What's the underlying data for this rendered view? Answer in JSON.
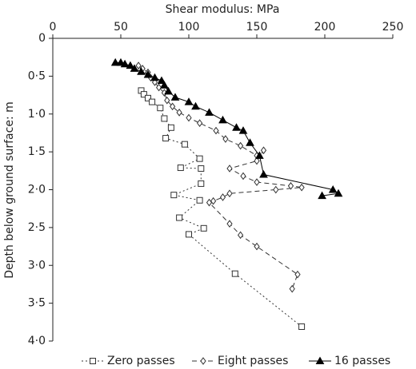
{
  "chart_data": {
    "type": "line",
    "x_label": "Shear modulus: MPa",
    "y_label": "Depth below ground surface: m",
    "x_axis_position": "top",
    "y_inverted": true,
    "xlim": [
      0,
      250
    ],
    "xticks": [
      0,
      50,
      100,
      150,
      200,
      250
    ],
    "ylim": [
      0,
      4
    ],
    "yticks": [
      0,
      {
        "value": 0.5,
        "label": "0·5"
      },
      {
        "value": 1.0,
        "label": "1·0"
      },
      {
        "value": 1.5,
        "label": "1·5"
      },
      {
        "value": 2.0,
        "label": "2·0"
      },
      {
        "value": 2.5,
        "label": "2·5"
      },
      {
        "value": 3.0,
        "label": "3·0"
      },
      {
        "value": 3.5,
        "label": "3·5"
      },
      {
        "value": 4.0,
        "label": "4·0"
      }
    ],
    "legend": "bottom",
    "series": [
      {
        "name": "Zero passes",
        "color": "#333333",
        "line_style": "dotted",
        "marker": "square",
        "x": [
          65,
          67,
          70,
          73,
          79,
          82,
          87,
          83,
          97,
          108,
          94,
          109,
          109,
          89,
          108,
          93,
          111,
          100,
          134,
          183
        ],
        "values": [
          0.69,
          0.74,
          0.79,
          0.84,
          0.92,
          1.06,
          1.18,
          1.32,
          1.4,
          1.59,
          1.71,
          1.72,
          1.92,
          2.07,
          2.14,
          2.37,
          2.51,
          2.59,
          3.11,
          3.81
        ]
      },
      {
        "name": "Eight passes",
        "color": "#333333",
        "line_style": "dashed",
        "marker": "diamond",
        "x": [
          63,
          66,
          70,
          72,
          75,
          78,
          82,
          84,
          88,
          93,
          100,
          108,
          120,
          127,
          138,
          150,
          155,
          150,
          130,
          140,
          150,
          175,
          183,
          164,
          130,
          125,
          118,
          115,
          130,
          138,
          150,
          180,
          176
        ],
        "values": [
          0.36,
          0.4,
          0.45,
          0.52,
          0.58,
          0.65,
          0.72,
          0.82,
          0.9,
          0.98,
          1.05,
          1.12,
          1.22,
          1.33,
          1.42,
          1.55,
          1.48,
          1.62,
          1.72,
          1.82,
          1.9,
          1.95,
          1.97,
          2.0,
          2.05,
          2.1,
          2.15,
          2.17,
          2.45,
          2.6,
          2.75,
          3.12,
          3.31
        ]
      },
      {
        "name": "16 passes",
        "color": "#000000",
        "line_style": "solid",
        "marker": "triangle",
        "x": [
          46,
          50,
          53,
          57,
          60,
          65,
          70,
          75,
          80,
          82,
          85,
          90,
          100,
          105,
          115,
          125,
          135,
          140,
          145,
          152,
          155,
          206,
          210,
          198
        ],
        "values": [
          0.32,
          0.32,
          0.34,
          0.36,
          0.4,
          0.44,
          0.48,
          0.52,
          0.56,
          0.62,
          0.7,
          0.78,
          0.84,
          0.9,
          0.98,
          1.08,
          1.18,
          1.22,
          1.38,
          1.55,
          1.8,
          2.0,
          2.05,
          2.08
        ]
      }
    ]
  }
}
